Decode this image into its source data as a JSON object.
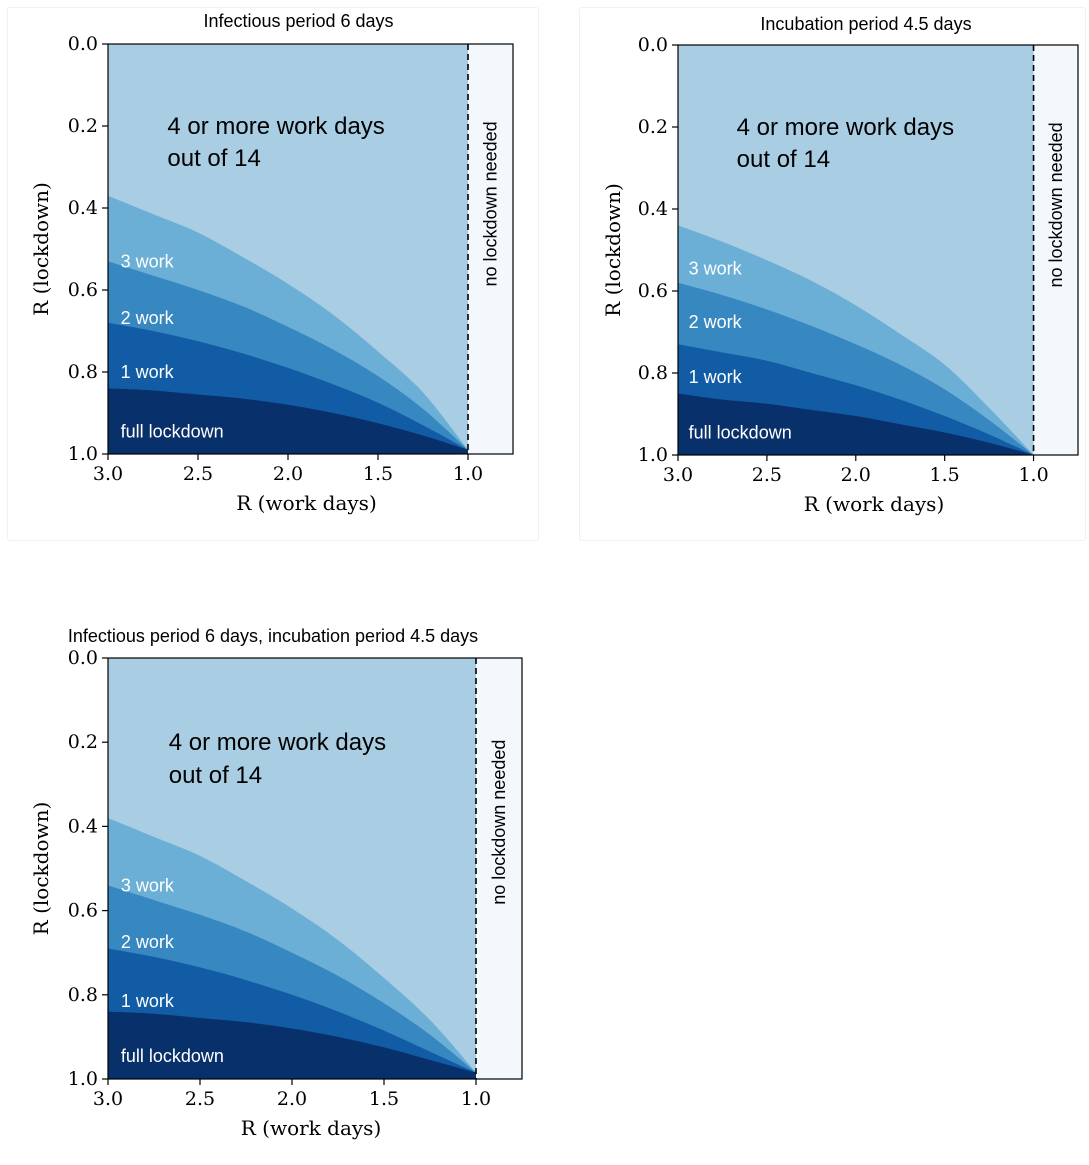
{
  "chart_data": [
    {
      "type": "area",
      "title": "Infectious period 6 days",
      "xlabel": "R (work days)",
      "ylabel": "R (lockdown)",
      "xlim": [
        3.0,
        0.75
      ],
      "ylim": [
        1.0,
        0.0
      ],
      "xticks": [
        "3.0",
        "2.5",
        "2.0",
        "1.5",
        "1.0"
      ],
      "xtick_values": [
        3.0,
        2.5,
        2.0,
        1.5,
        1.0
      ],
      "yticks": [
        "0.0",
        "0.2",
        "0.4",
        "0.6",
        "0.8",
        "1.0"
      ],
      "ytick_values": [
        0.0,
        0.2,
        0.4,
        0.6,
        0.8,
        1.0
      ],
      "threshold_x": 1.0,
      "x": [
        3.0,
        2.75,
        2.5,
        2.25,
        2.0,
        1.75,
        1.5,
        1.25,
        1.0
      ],
      "boundaries": [
        {
          "name": "full lockdown",
          "values": [
            0.84,
            0.845,
            0.855,
            0.865,
            0.88,
            0.9,
            0.925,
            0.955,
            0.99
          ],
          "label_x": 2.93,
          "label_y": 0.945
        },
        {
          "name": "1 work",
          "values": [
            0.68,
            0.7,
            0.725,
            0.755,
            0.79,
            0.83,
            0.875,
            0.93,
            0.99
          ],
          "label_x": 2.93,
          "label_y": 0.8
        },
        {
          "name": "2 work",
          "values": [
            0.53,
            0.565,
            0.6,
            0.64,
            0.69,
            0.745,
            0.81,
            0.89,
            0.99
          ],
          "label_x": 2.93,
          "label_y": 0.668
        },
        {
          "name": "3 work",
          "values": [
            0.37,
            0.415,
            0.46,
            0.52,
            0.585,
            0.66,
            0.75,
            0.85,
            0.99
          ],
          "label_x": 2.93,
          "label_y": 0.53
        }
      ],
      "region_top_label": [
        "4 or more work days",
        "out of 14"
      ],
      "region_top_x": 2.67,
      "region_top_y": [
        0.2,
        0.278
      ],
      "no_lockdown_label": "no lockdown needed",
      "colors": {
        "four_plus": "#a9cde3",
        "three": "#6baed6",
        "two": "#3787c0",
        "one": "#115ca5",
        "full": "#08306b",
        "no_lockdown": "#f3f8fd"
      }
    },
    {
      "type": "area",
      "title": "Incubation period 4.5 days",
      "xlabel": "R (work days)",
      "ylabel": "R (lockdown)",
      "xlim": [
        3.0,
        0.75
      ],
      "ylim": [
        1.0,
        0.0
      ],
      "xticks": [
        "3.0",
        "2.5",
        "2.0",
        "1.5",
        "1.0"
      ],
      "xtick_values": [
        3.0,
        2.5,
        2.0,
        1.5,
        1.0
      ],
      "yticks": [
        "0.0",
        "0.2",
        "0.4",
        "0.6",
        "0.8",
        "1.0"
      ],
      "ytick_values": [
        0.0,
        0.2,
        0.4,
        0.6,
        0.8,
        1.0
      ],
      "threshold_x": 1.0,
      "x": [
        3.0,
        2.75,
        2.5,
        2.25,
        2.0,
        1.75,
        1.5,
        1.25,
        1.0
      ],
      "boundaries": [
        {
          "name": "full lockdown",
          "values": [
            0.85,
            0.865,
            0.875,
            0.89,
            0.905,
            0.925,
            0.945,
            0.97,
            1.0
          ],
          "label_x": 2.94,
          "label_y": 0.945
        },
        {
          "name": "1 work",
          "values": [
            0.73,
            0.75,
            0.77,
            0.8,
            0.83,
            0.865,
            0.905,
            0.95,
            1.0
          ],
          "label_x": 2.94,
          "label_y": 0.81
        },
        {
          "name": "2 work",
          "values": [
            0.58,
            0.61,
            0.645,
            0.685,
            0.73,
            0.78,
            0.84,
            0.915,
            1.0
          ],
          "label_x": 2.94,
          "label_y": 0.675
        },
        {
          "name": "3 work",
          "values": [
            0.44,
            0.48,
            0.525,
            0.575,
            0.635,
            0.705,
            0.78,
            0.885,
            1.0
          ],
          "label_x": 2.94,
          "label_y": 0.545
        }
      ],
      "region_top_label": [
        "4 or more work days",
        "out of 14"
      ],
      "region_top_x": 2.67,
      "region_top_y": [
        0.2,
        0.278
      ],
      "no_lockdown_label": "no lockdown needed",
      "colors": {
        "four_plus": "#a9cde3",
        "three": "#6baed6",
        "two": "#3787c0",
        "one": "#115ca5",
        "full": "#08306b",
        "no_lockdown": "#f3f8fd"
      }
    },
    {
      "type": "area",
      "title": "Infectious period 6 days, incubation period 4.5 days",
      "xlabel": "R (work days)",
      "ylabel": "R (lockdown)",
      "xlim": [
        3.0,
        0.75
      ],
      "ylim": [
        1.0,
        0.0
      ],
      "xticks": [
        "3.0",
        "2.5",
        "2.0",
        "1.5",
        "1.0"
      ],
      "xtick_values": [
        3.0,
        2.5,
        2.0,
        1.5,
        1.0
      ],
      "yticks": [
        "0.0",
        "0.2",
        "0.4",
        "0.6",
        "0.8",
        "1.0"
      ],
      "ytick_values": [
        0.0,
        0.2,
        0.4,
        0.6,
        0.8,
        1.0
      ],
      "threshold_x": 1.0,
      "x": [
        3.0,
        2.75,
        2.5,
        2.25,
        2.0,
        1.75,
        1.5,
        1.25,
        1.0
      ],
      "boundaries": [
        {
          "name": "full lockdown",
          "values": [
            0.84,
            0.845,
            0.855,
            0.865,
            0.88,
            0.9,
            0.925,
            0.955,
            0.985
          ],
          "label_x": 2.93,
          "label_y": 0.945
        },
        {
          "name": "1 work",
          "values": [
            0.69,
            0.71,
            0.735,
            0.765,
            0.8,
            0.84,
            0.885,
            0.935,
            0.985
          ],
          "label_x": 2.93,
          "label_y": 0.815
        },
        {
          "name": "2 work",
          "values": [
            0.54,
            0.575,
            0.61,
            0.65,
            0.7,
            0.755,
            0.82,
            0.895,
            0.985
          ],
          "label_x": 2.93,
          "label_y": 0.675
        },
        {
          "name": "3 work",
          "values": [
            0.38,
            0.425,
            0.47,
            0.53,
            0.595,
            0.67,
            0.76,
            0.86,
            0.985
          ],
          "label_x": 2.93,
          "label_y": 0.54
        }
      ],
      "region_top_label": [
        "4 or more work days",
        "out of 14"
      ],
      "region_top_x": 2.67,
      "region_top_y": [
        0.2,
        0.278
      ],
      "no_lockdown_label": "no lockdown needed",
      "colors": {
        "four_plus": "#a9cde3",
        "three": "#6baed6",
        "two": "#3787c0",
        "one": "#115ca5",
        "full": "#08306b",
        "no_lockdown": "#f3f8fd"
      }
    }
  ]
}
